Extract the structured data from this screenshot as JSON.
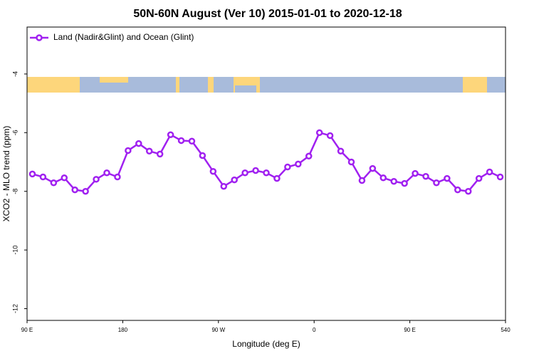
{
  "chart_data": {
    "type": "line",
    "title": "50N-60N August (Ver 10)   2015-01-01 to 2020-12-18",
    "x_label": "Longitude (deg E)",
    "y_label": "XCO2 - MLO trend (ppm)",
    "x": [
      95,
      105,
      115,
      125,
      135,
      145,
      155,
      165,
      175,
      185,
      195,
      205,
      215,
      225,
      235,
      245,
      255,
      265,
      275,
      285,
      295,
      305,
      315,
      325,
      335,
      345,
      355,
      365,
      375,
      385,
      395,
      405,
      415,
      425,
      435,
      445,
      455,
      465,
      475,
      485,
      495,
      505,
      515,
      525,
      535
    ],
    "series": [
      {
        "name": "Land (Nadir&Glint) and Ocean (Glint)",
        "color": "#a020f0",
        "values": [
          -7.41,
          -7.51,
          -7.71,
          -7.54,
          -7.95,
          -8.0,
          -7.59,
          -7.37,
          -7.51,
          -6.61,
          -6.37,
          -6.63,
          -6.73,
          -6.07,
          -6.27,
          -6.29,
          -6.78,
          -7.32,
          -7.83,
          -7.61,
          -7.37,
          -7.29,
          -7.37,
          -7.56,
          -7.17,
          -7.07,
          -6.8,
          -6.0,
          -6.1,
          -6.63,
          -7.0,
          -7.63,
          -7.22,
          -7.54,
          -7.66,
          -7.73,
          -7.39,
          -7.49,
          -7.71,
          -7.56,
          -7.95,
          -8.0,
          -7.56,
          -7.34,
          -7.51
        ]
      }
    ],
    "xlim": [
      90,
      540
    ],
    "xticks": [
      {
        "value": 90,
        "label": "90 E"
      },
      180,
      {
        "value": 270,
        "label": "90 W"
      },
      {
        "value": 360,
        "label": "0"
      },
      {
        "value": 450,
        "label": "90 E"
      },
      540
    ],
    "ylim": [
      -12.4,
      -2.4
    ],
    "yticks": [
      -4,
      -6,
      -8,
      -10,
      -12
    ],
    "legend": "top-left"
  }
}
